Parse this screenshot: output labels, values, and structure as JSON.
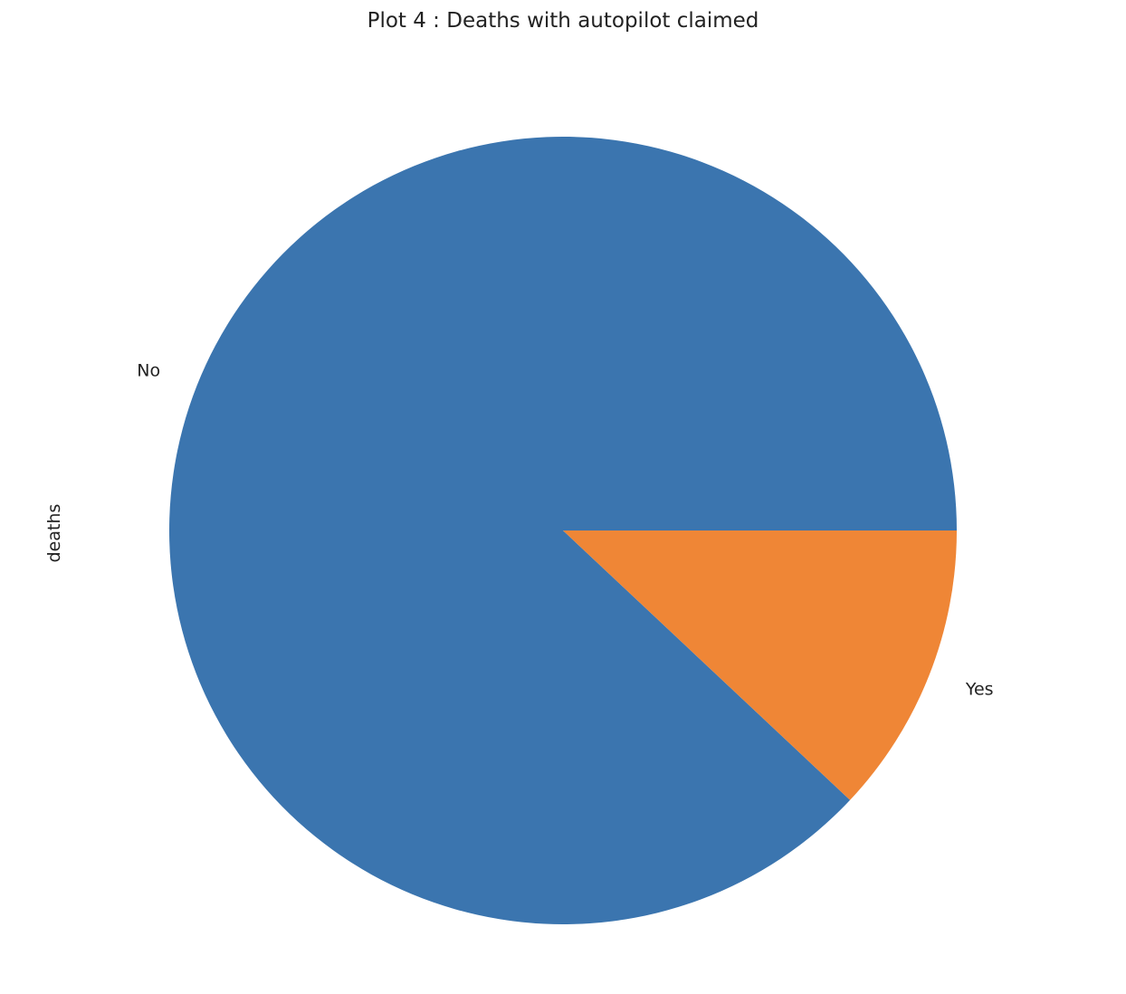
{
  "chart_data": {
    "type": "pie",
    "title": "Plot 4 : Deaths with autopilot claimed",
    "ylabel": "deaths",
    "xlabel": "",
    "startangle_deg": 0,
    "direction": "counterclockwise",
    "categories": [
      "No",
      "Yes"
    ],
    "values": [
      88,
      12
    ],
    "colors": [
      "#3b75af",
      "#ef8636"
    ]
  }
}
